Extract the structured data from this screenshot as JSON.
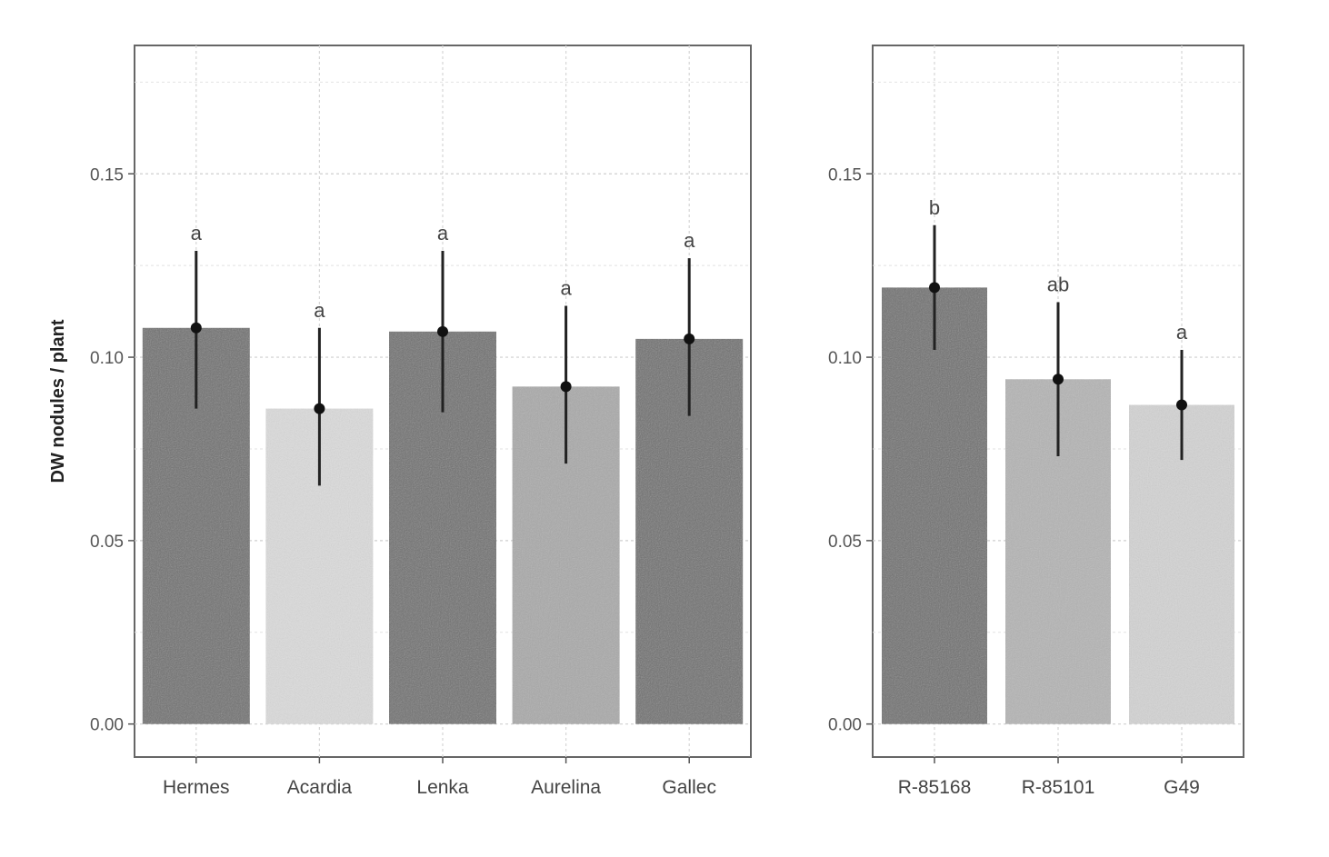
{
  "chart_data": [
    {
      "type": "bar",
      "title": "",
      "xlabel": "",
      "ylabel": "DW nodules / plant",
      "ylim": [
        -0.009,
        0.185
      ],
      "yticks": [
        "0.00",
        "0.05",
        "0.10",
        "0.15"
      ],
      "ytick_values": [
        0,
        0.05,
        0.1,
        0.15
      ],
      "grid": true,
      "categories": [
        "Hermes",
        "Acardia",
        "Lenka",
        "Aurelina",
        "Gallec"
      ],
      "values": [
        0.108,
        0.086,
        0.107,
        0.092,
        0.105
      ],
      "error_low": [
        0.086,
        0.065,
        0.085,
        0.071,
        0.084
      ],
      "error_high": [
        0.129,
        0.108,
        0.129,
        0.114,
        0.127
      ],
      "significance_letters": [
        "a",
        "a",
        "a",
        "a",
        "a"
      ],
      "bar_colors": [
        "#6e6e6e",
        "#dcdcdc",
        "#6e6e6e",
        "#a9a9a9",
        "#6e6e6e"
      ]
    },
    {
      "type": "bar",
      "title": "",
      "xlabel": "",
      "ylabel": "",
      "ylim": [
        -0.009,
        0.185
      ],
      "yticks": [
        "0.00",
        "0.05",
        "0.10",
        "0.15"
      ],
      "ytick_values": [
        0,
        0.05,
        0.1,
        0.15
      ],
      "grid": true,
      "categories": [
        "R-85168",
        "R-85101",
        "G49"
      ],
      "values": [
        0.119,
        0.094,
        0.087
      ],
      "error_low": [
        0.102,
        0.073,
        0.072
      ],
      "error_high": [
        0.136,
        0.115,
        0.102
      ],
      "significance_letters": [
        "b",
        "ab",
        "a"
      ],
      "bar_colors": [
        "#6e6e6e",
        "#b4b4b4",
        "#d4d4d4"
      ]
    }
  ]
}
